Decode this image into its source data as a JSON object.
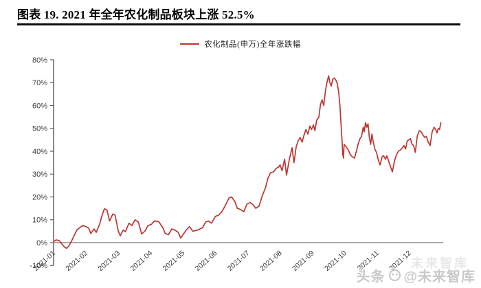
{
  "header": {
    "title": "图表 19. 2021 年全年农化制品板块上涨 52.5%"
  },
  "legend": {
    "label": "农化制品(申万)全年涨跌幅"
  },
  "watermark": {
    "ghost": "未来智库",
    "prefix": "头条",
    "handle": "@未来智库"
  },
  "colors": {
    "line": "#bf3430",
    "axis": "#595959",
    "zero_line": "#a8a8a8",
    "tick_label": "#3a3a3a",
    "title_rule": "#0a0a0a"
  },
  "chart_data": {
    "type": "line",
    "title": "图表 19. 2021 年全年农化制品板块上涨 52.5%",
    "xlabel": "",
    "ylabel": "",
    "ylim": [
      -10,
      80
    ],
    "xlim_months": [
      0,
      12
    ],
    "grid": false,
    "legend_position": "top-center",
    "y_tick_labels": [
      "80%",
      "70%",
      "60%",
      "50%",
      "40%",
      "30%",
      "20%",
      "10%",
      "0%",
      "-10%"
    ],
    "x_tick_labels": [
      "2021-01",
      "2021-02",
      "2021-03",
      "2021-04",
      "2021-05",
      "2021-06",
      "2021-07",
      "2021-08",
      "2021-09",
      "2021-10",
      "2021-11",
      "2021-12"
    ],
    "series": [
      {
        "name": "农化制品(申万)全年涨跌幅",
        "final_value_pct": 52.5,
        "points": [
          [
            0.0,
            0.5
          ],
          [
            0.08,
            1.2
          ],
          [
            0.18,
            0.8
          ],
          [
            0.25,
            -0.5
          ],
          [
            0.33,
            -1.8
          ],
          [
            0.4,
            -2.5
          ],
          [
            0.47,
            -1.5
          ],
          [
            0.55,
            0.5
          ],
          [
            0.63,
            3.0
          ],
          [
            0.72,
            5.5
          ],
          [
            0.8,
            6.5
          ],
          [
            0.9,
            7.5
          ],
          [
            1.0,
            7.0
          ],
          [
            1.08,
            6.5
          ],
          [
            1.15,
            4.0
          ],
          [
            1.25,
            6.0
          ],
          [
            1.32,
            4.5
          ],
          [
            1.42,
            8.0
          ],
          [
            1.5,
            12.0
          ],
          [
            1.57,
            14.8
          ],
          [
            1.65,
            14.3
          ],
          [
            1.73,
            9.5
          ],
          [
            1.83,
            12.5
          ],
          [
            1.9,
            12.0
          ],
          [
            2.0,
            5.0
          ],
          [
            2.06,
            3.0
          ],
          [
            2.15,
            5.5
          ],
          [
            2.22,
            4.8
          ],
          [
            2.33,
            8.5
          ],
          [
            2.42,
            7.5
          ],
          [
            2.52,
            10.0
          ],
          [
            2.62,
            9.0
          ],
          [
            2.72,
            3.8
          ],
          [
            2.82,
            5.0
          ],
          [
            2.92,
            7.5
          ],
          [
            3.02,
            8.0
          ],
          [
            3.12,
            9.5
          ],
          [
            3.25,
            9.2
          ],
          [
            3.38,
            6.5
          ],
          [
            3.45,
            4.0
          ],
          [
            3.55,
            3.5
          ],
          [
            3.65,
            6.0
          ],
          [
            3.75,
            5.5
          ],
          [
            3.85,
            4.5
          ],
          [
            3.93,
            2.0
          ],
          [
            4.0,
            3.5
          ],
          [
            4.1,
            5.5
          ],
          [
            4.2,
            7.0
          ],
          [
            4.3,
            5.0
          ],
          [
            4.45,
            5.5
          ],
          [
            4.6,
            6.5
          ],
          [
            4.7,
            9.0
          ],
          [
            4.78,
            9.5
          ],
          [
            4.88,
            8.5
          ],
          [
            5.0,
            11.5
          ],
          [
            5.1,
            12.0
          ],
          [
            5.2,
            13.5
          ],
          [
            5.3,
            16.0
          ],
          [
            5.42,
            19.5
          ],
          [
            5.5,
            20.0
          ],
          [
            5.6,
            18.0
          ],
          [
            5.68,
            15.0
          ],
          [
            5.78,
            14.5
          ],
          [
            5.88,
            13.5
          ],
          [
            5.98,
            17.0
          ],
          [
            6.08,
            17.5
          ],
          [
            6.17,
            16.5
          ],
          [
            6.25,
            15.0
          ],
          [
            6.35,
            16.0
          ],
          [
            6.45,
            20.5
          ],
          [
            6.55,
            24.0
          ],
          [
            6.62,
            28.0
          ],
          [
            6.7,
            30.5
          ],
          [
            6.8,
            31.0
          ],
          [
            6.88,
            32.5
          ],
          [
            6.95,
            33.0
          ],
          [
            7.0,
            34.0
          ],
          [
            7.06,
            31.5
          ],
          [
            7.14,
            36.5
          ],
          [
            7.2,
            29.5
          ],
          [
            7.28,
            36.0
          ],
          [
            7.37,
            41.5
          ],
          [
            7.43,
            35.0
          ],
          [
            7.5,
            42.0
          ],
          [
            7.56,
            44.5
          ],
          [
            7.62,
            46.0
          ],
          [
            7.68,
            44.0
          ],
          [
            7.74,
            47.0
          ],
          [
            7.8,
            49.5
          ],
          [
            7.86,
            47.5
          ],
          [
            7.92,
            51.0
          ],
          [
            7.97,
            49.5
          ],
          [
            8.03,
            51.5
          ],
          [
            8.08,
            49.0
          ],
          [
            8.13,
            53.5
          ],
          [
            8.2,
            55.0
          ],
          [
            8.25,
            60.5
          ],
          [
            8.3,
            62.5
          ],
          [
            8.35,
            60.0
          ],
          [
            8.4,
            66.0
          ],
          [
            8.44,
            69.5
          ],
          [
            8.5,
            73.0
          ],
          [
            8.54,
            70.0
          ],
          [
            8.58,
            68.5
          ],
          [
            8.63,
            71.5
          ],
          [
            8.68,
            72.0
          ],
          [
            8.73,
            71.0
          ],
          [
            8.77,
            69.5
          ],
          [
            8.81,
            66.0
          ],
          [
            8.85,
            60.0
          ],
          [
            8.88,
            53.0
          ],
          [
            8.91,
            46.0
          ],
          [
            8.94,
            38.5
          ],
          [
            8.96,
            37.0
          ],
          [
            8.98,
            43.0
          ],
          [
            9.04,
            42.0
          ],
          [
            9.11,
            40.5
          ],
          [
            9.17,
            38.5
          ],
          [
            9.24,
            37.5
          ],
          [
            9.3,
            37.0
          ],
          [
            9.36,
            40.0
          ],
          [
            9.42,
            43.5
          ],
          [
            9.47,
            45.5
          ],
          [
            9.52,
            46.5
          ],
          [
            9.57,
            50.5
          ],
          [
            9.6,
            48.5
          ],
          [
            9.64,
            52.5
          ],
          [
            9.68,
            50.5
          ],
          [
            9.72,
            52.0
          ],
          [
            9.76,
            46.0
          ],
          [
            9.8,
            43.0
          ],
          [
            9.84,
            47.5
          ],
          [
            9.88,
            44.0
          ],
          [
            9.93,
            41.0
          ],
          [
            9.98,
            39.5
          ],
          [
            10.04,
            36.0
          ],
          [
            10.09,
            34.0
          ],
          [
            10.15,
            37.5
          ],
          [
            10.2,
            38.0
          ],
          [
            10.26,
            36.5
          ],
          [
            10.3,
            38.0
          ],
          [
            10.36,
            35.5
          ],
          [
            10.42,
            33.0
          ],
          [
            10.47,
            31.0
          ],
          [
            10.54,
            36.0
          ],
          [
            10.6,
            38.5
          ],
          [
            10.66,
            40.0
          ],
          [
            10.72,
            40.5
          ],
          [
            10.78,
            41.5
          ],
          [
            10.83,
            42.5
          ],
          [
            10.88,
            41.0
          ],
          [
            10.93,
            44.5
          ],
          [
            10.98,
            45.0
          ],
          [
            11.03,
            45.5
          ],
          [
            11.08,
            43.0
          ],
          [
            11.13,
            42.5
          ],
          [
            11.18,
            39.5
          ],
          [
            11.24,
            46.5
          ],
          [
            11.3,
            49.0
          ],
          [
            11.36,
            48.5
          ],
          [
            11.42,
            47.0
          ],
          [
            11.47,
            46.0
          ],
          [
            11.52,
            46.5
          ],
          [
            11.58,
            44.0
          ],
          [
            11.64,
            42.5
          ],
          [
            11.7,
            48.5
          ],
          [
            11.76,
            50.5
          ],
          [
            11.81,
            49.5
          ],
          [
            11.85,
            48.0
          ],
          [
            11.89,
            50.0
          ],
          [
            11.93,
            49.5
          ],
          [
            11.97,
            52.5
          ]
        ]
      }
    ]
  }
}
